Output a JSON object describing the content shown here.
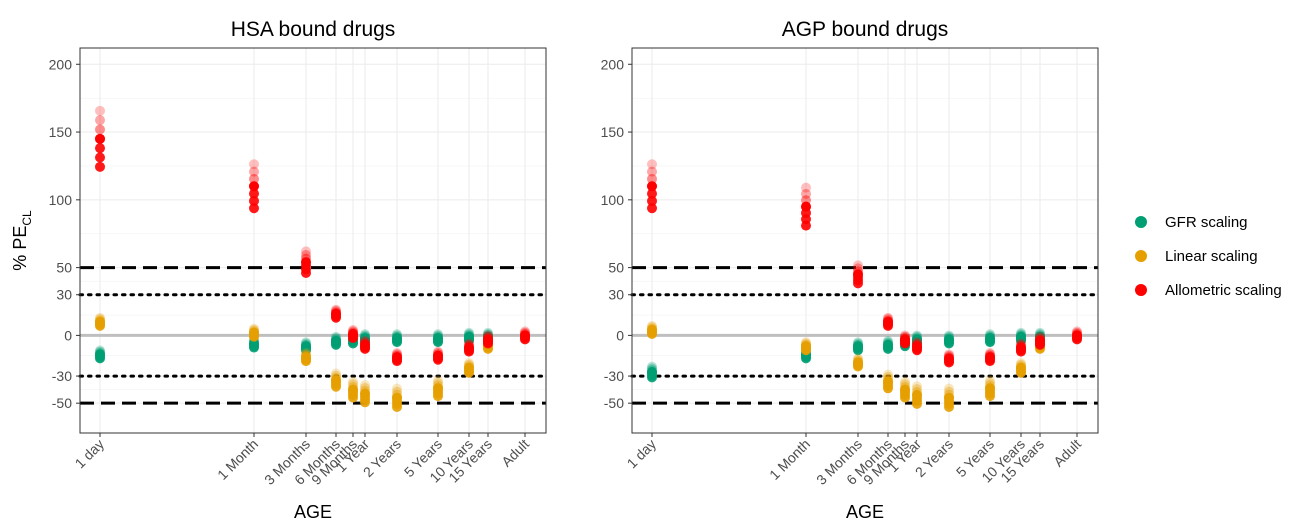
{
  "chart_data": [
    {
      "type": "scatter",
      "title": "HSA bound drugs",
      "xlabel": "AGE",
      "ylabel": "% PE",
      "ylabel_sub": "CL",
      "ylim": [
        -72,
        212
      ],
      "yticks": [
        -50,
        -30,
        0,
        30,
        50,
        100,
        150,
        200
      ],
      "reference_lines": [
        {
          "y": 50,
          "style": "dashed"
        },
        {
          "y": -50,
          "style": "dashed"
        },
        {
          "y": 30,
          "style": "dotted"
        },
        {
          "y": -30,
          "style": "dotted"
        },
        {
          "y": 0,
          "style": "solid-grey"
        }
      ],
      "categories": [
        "1 day",
        "1 Month",
        "3 Months",
        "6 Months",
        "9 Months",
        "1 Year",
        "2 Years",
        "5 Years",
        "10 Years",
        "15 Years",
        "Adult"
      ],
      "series": [
        {
          "name": "GFR scaling",
          "color": "#009E73",
          "points": [
            [
              "1 day",
              -14
            ],
            [
              "1 Month",
              -6
            ],
            [
              "3 Months",
              -8
            ],
            [
              "6 Months",
              -4
            ],
            [
              "9 Months",
              -3
            ],
            [
              "1 Year",
              -2
            ],
            [
              "2 Years",
              -2
            ],
            [
              "5 Years",
              -2
            ],
            [
              "10 Years",
              -1
            ],
            [
              "15 Years",
              -1
            ]
          ]
        },
        {
          "name": "Linear scaling",
          "color": "#E69F00",
          "points": [
            [
              "1 day",
              10
            ],
            [
              "1 Month",
              2
            ],
            [
              "3 Months",
              -16
            ],
            [
              "6 Months",
              -33
            ],
            [
              "9 Months",
              -40
            ],
            [
              "1 Year",
              -43
            ],
            [
              "2 Years",
              -46
            ],
            [
              "5 Years",
              -39
            ],
            [
              "10 Years",
              -24
            ],
            [
              "15 Years",
              -7
            ]
          ]
        },
        {
          "name": "Allometric scaling",
          "color": "#FF0000",
          "points": [
            [
              "1 day",
              145
            ],
            [
              "1 Month",
              110
            ],
            [
              "3 Months",
              54
            ],
            [
              "6 Months",
              16
            ],
            [
              "9 Months",
              1
            ],
            [
              "1 Year",
              -7
            ],
            [
              "2 Years",
              -16
            ],
            [
              "5 Years",
              -15
            ],
            [
              "10 Years",
              -9
            ],
            [
              "15 Years",
              -3
            ],
            [
              "Adult",
              0
            ]
          ]
        }
      ]
    },
    {
      "type": "scatter",
      "title": "AGP bound drugs",
      "xlabel": "AGE",
      "ylabel": "",
      "ylim": [
        -72,
        212
      ],
      "yticks": [
        -50,
        -30,
        0,
        30,
        50,
        100,
        150,
        200
      ],
      "reference_lines": [
        {
          "y": 50,
          "style": "dashed"
        },
        {
          "y": -50,
          "style": "dashed"
        },
        {
          "y": 30,
          "style": "dotted"
        },
        {
          "y": -30,
          "style": "dotted"
        },
        {
          "y": 0,
          "style": "solid-grey"
        }
      ],
      "categories": [
        "1 day",
        "1 Month",
        "3 Months",
        "6 Months",
        "9 Months",
        "1 Year",
        "2 Years",
        "5 Years",
        "10 Years",
        "15 Years",
        "Adult"
      ],
      "series": [
        {
          "name": "GFR scaling",
          "color": "#009E73",
          "points": [
            [
              "1 day",
              -27
            ],
            [
              "1 Month",
              -14
            ],
            [
              "3 Months",
              -8
            ],
            [
              "6 Months",
              -7
            ],
            [
              "9 Months",
              -5
            ],
            [
              "1 Year",
              -3
            ],
            [
              "2 Years",
              -3
            ],
            [
              "5 Years",
              -2
            ],
            [
              "10 Years",
              -1
            ],
            [
              "15 Years",
              -1
            ]
          ]
        },
        {
          "name": "Linear scaling",
          "color": "#E69F00",
          "points": [
            [
              "1 day",
              4
            ],
            [
              "1 Month",
              -8
            ],
            [
              "3 Months",
              -20
            ],
            [
              "6 Months",
              -34
            ],
            [
              "9 Months",
              -40
            ],
            [
              "1 Year",
              -44
            ],
            [
              "2 Years",
              -46
            ],
            [
              "5 Years",
              -39
            ],
            [
              "10 Years",
              -24
            ],
            [
              "15 Years",
              -7
            ]
          ]
        },
        {
          "name": "Allometric scaling",
          "color": "#FF0000",
          "points": [
            [
              "1 day",
              110
            ],
            [
              "1 Month",
              95
            ],
            [
              "3 Months",
              45
            ],
            [
              "6 Months",
              10
            ],
            [
              "9 Months",
              -3
            ],
            [
              "1 Year",
              -8
            ],
            [
              "2 Years",
              -17
            ],
            [
              "5 Years",
              -16
            ],
            [
              "10 Years",
              -9
            ],
            [
              "15 Years",
              -4
            ],
            [
              "Adult",
              0
            ]
          ]
        }
      ]
    }
  ],
  "legend": {
    "position": "right",
    "items": [
      {
        "label": "GFR scaling",
        "color": "#009E73"
      },
      {
        "label": "Linear scaling",
        "color": "#E69F00"
      },
      {
        "label": "Allometric scaling",
        "color": "#FF0000"
      }
    ]
  }
}
